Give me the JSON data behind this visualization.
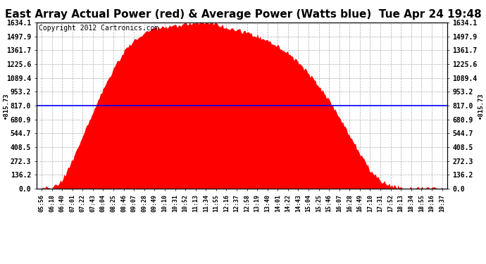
{
  "title": "East Array Actual Power (red) & Average Power (Watts blue)  Tue Apr 24 19:48",
  "copyright": "Copyright 2012 Cartronics.com",
  "avg_power": 815.73,
  "ymax": 1634.1,
  "yticks": [
    0.0,
    136.2,
    272.3,
    408.5,
    544.7,
    680.9,
    817.0,
    953.2,
    1089.4,
    1225.6,
    1361.7,
    1497.9,
    1634.1
  ],
  "background_color": "#ffffff",
  "fill_color": "#ff0000",
  "avg_line_color": "#0000ff",
  "grid_color": "#999999",
  "title_fontsize": 11,
  "copyright_fontsize": 7,
  "x_labels": [
    "05:56",
    "06:18",
    "06:40",
    "07:01",
    "07:22",
    "07:43",
    "08:04",
    "08:25",
    "08:46",
    "09:07",
    "09:28",
    "09:49",
    "10:10",
    "10:31",
    "10:52",
    "11:13",
    "11:34",
    "11:55",
    "12:16",
    "12:37",
    "12:58",
    "13:19",
    "13:40",
    "14:01",
    "14:22",
    "14:43",
    "15:04",
    "15:25",
    "15:46",
    "16:07",
    "16:28",
    "16:49",
    "17:10",
    "17:31",
    "17:52",
    "18:13",
    "18:34",
    "18:55",
    "19:16",
    "19:37"
  ],
  "power": [
    5,
    10,
    80,
    280,
    520,
    750,
    980,
    1180,
    1340,
    1460,
    1530,
    1570,
    1590,
    1600,
    1620,
    1634,
    1634,
    1620,
    1590,
    1560,
    1530,
    1500,
    1460,
    1400,
    1330,
    1240,
    1130,
    1010,
    870,
    700,
    520,
    350,
    180,
    80,
    30,
    10,
    5,
    3,
    2,
    1
  ]
}
